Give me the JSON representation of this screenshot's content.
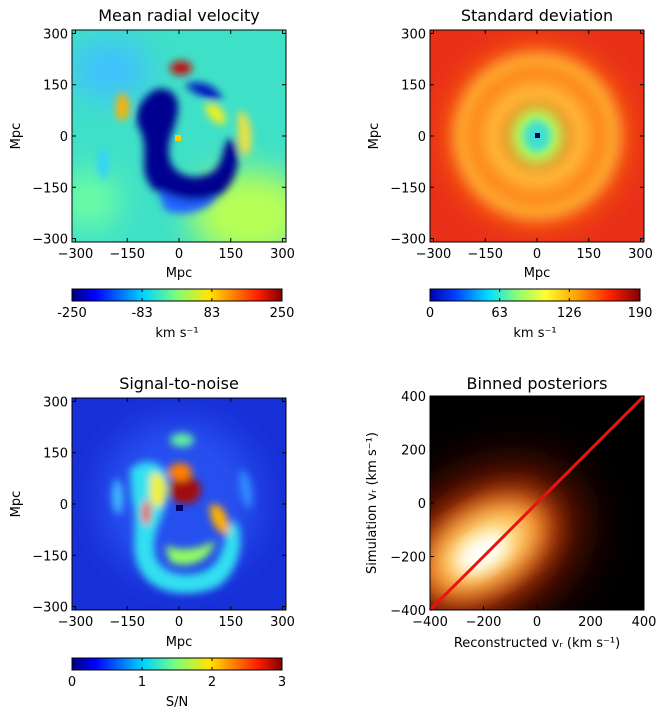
{
  "chart_data": [
    {
      "type": "heatmap",
      "title": "Mean radial velocity",
      "xlabel": "Mpc",
      "ylabel": "Mpc",
      "xlim": [
        -310,
        310
      ],
      "ylim": [
        -310,
        310
      ],
      "xticks": [
        "−300",
        "−150",
        "0",
        "150",
        "300"
      ],
      "yticks": [
        "−300",
        "−150",
        "0",
        "150",
        "300"
      ],
      "colorbar": {
        "label": "km s⁻¹",
        "ticks": [
          "-250",
          "-83",
          "83",
          "250"
        ],
        "range": [
          -250,
          250
        ],
        "colormap": "jet"
      }
    },
    {
      "type": "heatmap",
      "title": "Standard deviation",
      "xlabel": "Mpc",
      "ylabel": "Mpc",
      "xlim": [
        -310,
        310
      ],
      "ylim": [
        -310,
        310
      ],
      "xticks": [
        "−300",
        "−150",
        "0",
        "150",
        "300"
      ],
      "yticks": [
        "−300",
        "−150",
        "0",
        "150",
        "300"
      ],
      "colorbar": {
        "label": "km s⁻¹",
        "ticks": [
          "0",
          "63",
          "126",
          "190"
        ],
        "range": [
          0,
          190
        ],
        "colormap": "hot"
      }
    },
    {
      "type": "heatmap",
      "title": "Signal-to-noise",
      "xlabel": "Mpc",
      "ylabel": "Mpc",
      "xlim": [
        -310,
        310
      ],
      "ylim": [
        -310,
        310
      ],
      "xticks": [
        "−300",
        "−150",
        "0",
        "150",
        "300"
      ],
      "yticks": [
        "−300",
        "−150",
        "0",
        "150",
        "300"
      ],
      "colorbar": {
        "label": "S/N",
        "ticks": [
          "0",
          "1",
          "2",
          "3"
        ],
        "range": [
          0,
          3
        ],
        "colormap": "jet"
      }
    },
    {
      "type": "heatmap",
      "title": "Binned posteriors",
      "xlabel": "Reconstructed vᵣ (km s⁻¹)",
      "ylabel": "Simulation vᵣ (km s⁻¹)",
      "xlim": [
        -400,
        400
      ],
      "ylim": [
        -400,
        400
      ],
      "xticks": [
        "−400",
        "−200",
        "0",
        "200",
        "400"
      ],
      "yticks": [
        "−400",
        "−200",
        "0",
        "200",
        "400"
      ],
      "colormap": "hot",
      "diagonal": {
        "x": [
          -400,
          400
        ],
        "y": [
          -400,
          400
        ],
        "color": "#ee1111"
      }
    }
  ]
}
